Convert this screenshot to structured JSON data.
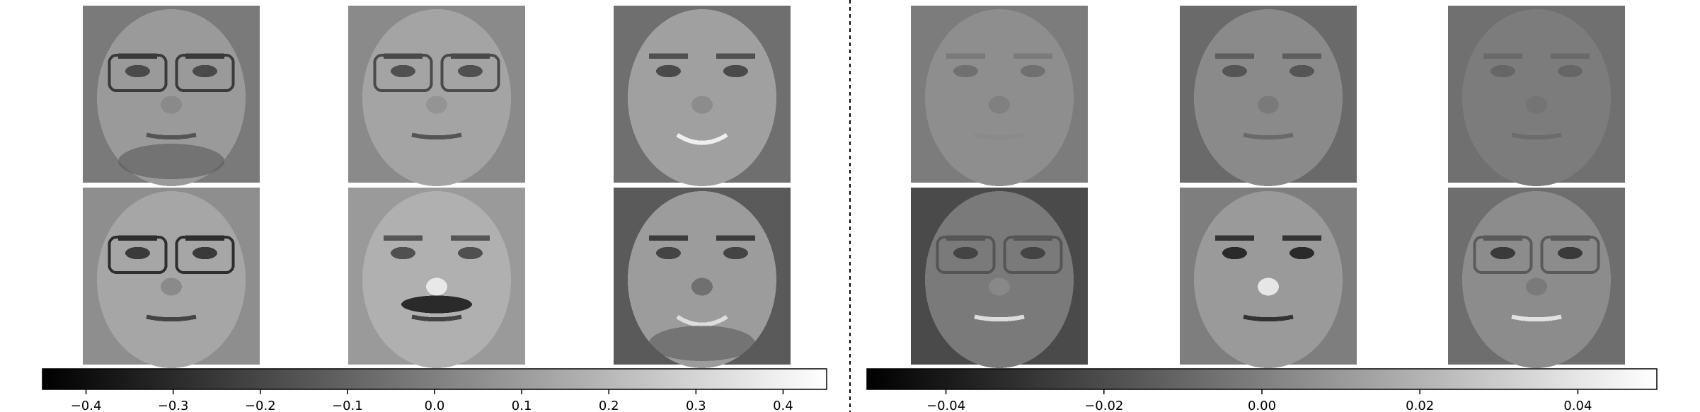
{
  "chart_data": [
    {
      "type": "heatmap",
      "panel": "left",
      "colormap": "gray",
      "grid_rows": 2,
      "grid_cols": 3,
      "images": [
        {
          "content": "face, glasses, beard"
        },
        {
          "content": "face, large glasses"
        },
        {
          "content": "face, smiling woman"
        },
        {
          "content": "face, glasses"
        },
        {
          "content": "face, mustache"
        },
        {
          "content": "face, beard, smiling"
        }
      ],
      "colorbar": {
        "vmin": -0.45,
        "vmax": 0.45,
        "ticks": [
          -0.4,
          -0.3,
          -0.2,
          -0.1,
          0.0,
          0.1,
          0.2,
          0.3,
          0.4
        ],
        "tick_labels": [
          "−0.4",
          "−0.3",
          "−0.2",
          "−0.1",
          "0.0",
          "0.1",
          "0.2",
          "0.3",
          "0.4"
        ]
      }
    },
    {
      "type": "heatmap",
      "panel": "right",
      "colormap": "gray",
      "grid_rows": 2,
      "grid_cols": 3,
      "images": [
        {
          "content": "blurry mean-like face"
        },
        {
          "content": "blurry face component"
        },
        {
          "content": "faint face component"
        },
        {
          "content": "face component, bright lips"
        },
        {
          "content": "face component, dark eyes"
        },
        {
          "content": "face component, glasses outline"
        }
      ],
      "colorbar": {
        "vmin": -0.05,
        "vmax": 0.05,
        "ticks": [
          -0.04,
          -0.02,
          0.0,
          0.02,
          0.04
        ],
        "tick_labels": [
          "−0.04",
          "−0.02",
          "0.00",
          "0.02",
          "0.04"
        ]
      }
    }
  ],
  "divider": {
    "style": "dashed",
    "color": "#000000"
  }
}
